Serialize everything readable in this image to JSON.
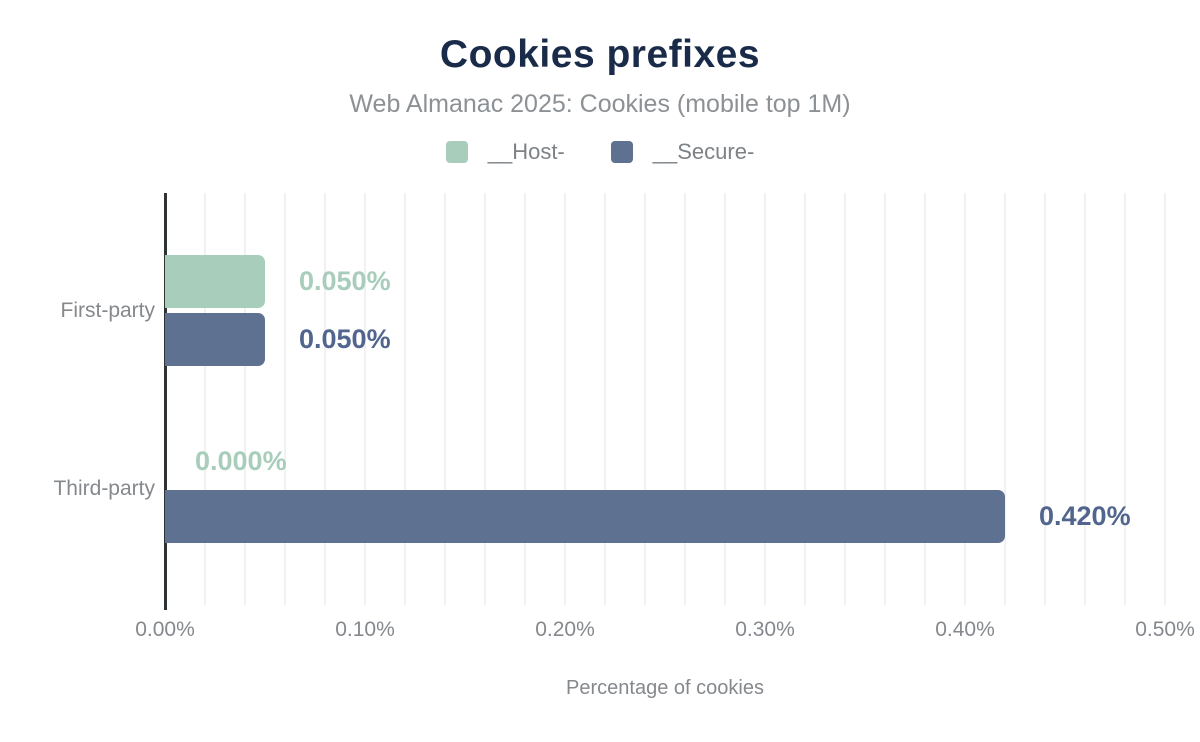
{
  "chart_data": {
    "type": "bar",
    "orientation": "horizontal",
    "title": "Cookies prefixes",
    "subtitle": "Web Almanac 2025: Cookies (mobile top 1M)",
    "categories": [
      "First-party",
      "Third-party"
    ],
    "series": [
      {
        "name": "__Host-",
        "color": "#a8cdbb",
        "label_color": "#a8cdbb",
        "values": [
          0.05,
          0.0
        ],
        "value_labels": [
          "0.050%",
          "0.000%"
        ]
      },
      {
        "name": "__Secure-",
        "color": "#5e7190",
        "label_color": "#51658e",
        "values": [
          0.05,
          0.42
        ],
        "value_labels": [
          "0.050%",
          "0.420%"
        ]
      }
    ],
    "xlabel": "Percentage of cookies",
    "xlim": [
      0,
      0.5
    ],
    "xticks": [
      "0.00%",
      "0.10%",
      "0.20%",
      "0.30%",
      "0.40%",
      "0.50%"
    ],
    "grid_step": 0.02,
    "grid": true,
    "legend_position": "top",
    "colors": {
      "title": "#1a2b49",
      "subtitle": "#8c9196",
      "axis_line": "#303335",
      "gridline": "#f1f1f1",
      "tick_text": "#85898d"
    }
  }
}
